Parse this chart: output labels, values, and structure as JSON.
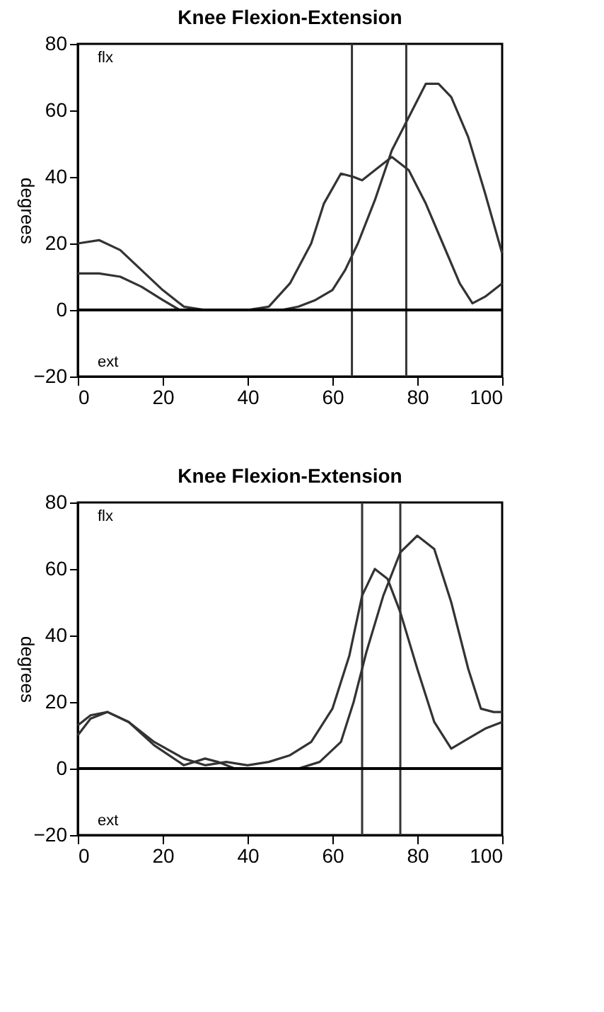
{
  "chart_data": [
    {
      "type": "line",
      "title": "Knee Flexion-Extension",
      "ylabel": "degrees",
      "annotations": [
        "flx",
        "ext"
      ],
      "xlim": [
        0,
        100
      ],
      "xticks": [
        0,
        20,
        40,
        60,
        80,
        100
      ],
      "ylim": [
        -20,
        80
      ],
      "yticks": [
        -20,
        0,
        20,
        40,
        60,
        80
      ],
      "grid": false,
      "marker": "none",
      "line_style": "solid",
      "series": [
        {
          "color": "#333333",
          "x": [
            0,
            5,
            10,
            15,
            20,
            25,
            30,
            40,
            45,
            50,
            55,
            58,
            62,
            65,
            67,
            70,
            74,
            78,
            82,
            86,
            90,
            93,
            96,
            100
          ],
          "values": [
            20,
            21,
            18,
            12,
            6,
            1,
            0,
            0,
            1,
            8,
            20,
            32,
            41,
            40,
            39,
            42,
            46,
            42,
            32,
            20,
            8,
            2,
            4,
            8
          ]
        },
        {
          "color": "#333333",
          "x": [
            0,
            5,
            10,
            15,
            20,
            24,
            30,
            40,
            48,
            52,
            56,
            60,
            63,
            66,
            70,
            74,
            78,
            82,
            85,
            88,
            92,
            96,
            100
          ],
          "values": [
            11,
            11,
            10,
            7,
            3,
            0,
            0,
            0,
            0,
            1,
            3,
            6,
            12,
            20,
            33,
            48,
            58,
            68,
            68,
            64,
            52,
            35,
            17
          ]
        }
      ],
      "ref_lines": [
        {
          "axis": "x",
          "value": 64.6,
          "color": "#333333"
        },
        {
          "axis": "x",
          "value": 77.4,
          "color": "#333333"
        },
        {
          "axis": "y",
          "value": 0,
          "color": "#000000"
        }
      ]
    },
    {
      "type": "line",
      "title": "Knee Flexion-Extension",
      "ylabel": "degrees",
      "annotations": [
        "flx",
        "ext"
      ],
      "xlim": [
        0,
        100
      ],
      "xticks": [
        0,
        20,
        40,
        60,
        80,
        100
      ],
      "ylim": [
        -20,
        80
      ],
      "yticks": [
        -20,
        0,
        20,
        40,
        60,
        80
      ],
      "grid": false,
      "marker": "none",
      "line_style": "solid",
      "series": [
        {
          "color": "#333333",
          "x": [
            0,
            3,
            7,
            12,
            18,
            25,
            30,
            35,
            40,
            45,
            50,
            55,
            60,
            64,
            67,
            70,
            73,
            76,
            80,
            84,
            88,
            92,
            96,
            100
          ],
          "values": [
            13,
            16,
            17,
            14,
            8,
            3,
            1,
            2,
            1,
            2,
            4,
            8,
            18,
            34,
            52,
            60,
            57,
            47,
            30,
            14,
            6,
            9,
            12,
            14
          ]
        },
        {
          "color": "#333333",
          "x": [
            0,
            3,
            7,
            12,
            18,
            25,
            30,
            33,
            37,
            45,
            52,
            57,
            62,
            65,
            68,
            72,
            76,
            80,
            84,
            88,
            92,
            95,
            98,
            100
          ],
          "values": [
            10,
            15,
            17,
            14,
            7,
            1,
            3,
            2,
            0,
            0,
            0,
            2,
            8,
            20,
            35,
            52,
            65,
            70,
            66,
            50,
            30,
            18,
            17,
            17
          ]
        }
      ],
      "ref_lines": [
        {
          "axis": "x",
          "value": 67,
          "color": "#333333"
        },
        {
          "axis": "x",
          "value": 76,
          "color": "#333333"
        },
        {
          "axis": "y",
          "value": 0,
          "color": "#000000"
        }
      ]
    }
  ]
}
